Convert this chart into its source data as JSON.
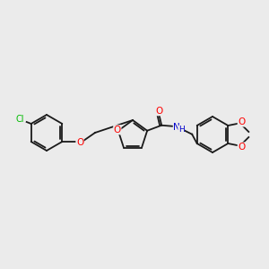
{
  "background_color": "#ebebeb",
  "bond_color": "#1a1a1a",
  "atom_colors": {
    "O": "#ff0000",
    "N": "#0000cd",
    "Cl": "#00bb00",
    "C": "#1a1a1a"
  },
  "lw": 1.3,
  "figsize": [
    3.0,
    3.0
  ],
  "dpi": 100
}
